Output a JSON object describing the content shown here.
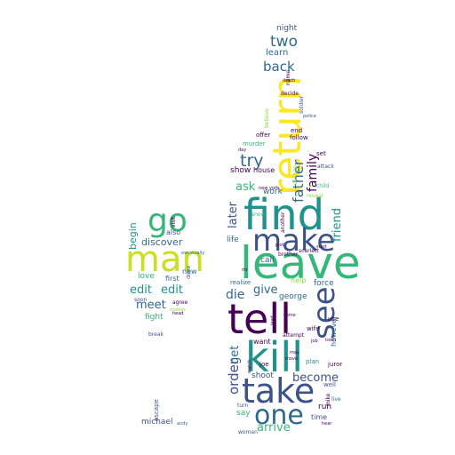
{
  "palette": {
    "deep_purple": "#440154",
    "indigo": "#3b528b",
    "teal_blue": "#31688e",
    "teal": "#21918c",
    "green": "#35b779",
    "lime": "#90d743",
    "yellow": "#fde725"
  },
  "shapes": [
    "wine-glass",
    "wine-bottle"
  ],
  "words": {
    "leave": "leave",
    "find": "find",
    "tell": "tell",
    "make": "make",
    "man": "man",
    "kill": "kill",
    "take": "take",
    "go": "go",
    "return": "return",
    "see": "see",
    "one": "one",
    "back": "back",
    "two": "two",
    "try": "try",
    "father": "father",
    "family": "family",
    "friend": "friend",
    "arrive": "arrive",
    "become": "become",
    "order": "order",
    "get": "get",
    "give": "give",
    "die": "die",
    "later": "later",
    "ask": "ask",
    "edit1": "edit",
    "edit2": "edit",
    "meet": "meet",
    "discover": "discover",
    "begin": "begin",
    "love": "love",
    "fight": "fight",
    "michael": "michael",
    "first": "first",
    "new": "new",
    "also": "also",
    "learn": "learn",
    "night": "night",
    "work": "work",
    "life": "life",
    "call": "call",
    "force": "force",
    "george": "george",
    "shoot": "shoot",
    "want": "want",
    "run": "run",
    "time": "time",
    "say": "say",
    "however": "however",
    "show": "show",
    "house": "house",
    "murder": "murder",
    "offer": "offer",
    "end": "end",
    "follow": "follow",
    "police": "police",
    "soldier": "soldier",
    "decide": "decide",
    "help": "help",
    "agree": "agree",
    "soon": "soon",
    "escape": "escape",
    "break": "break",
    "drive": "drive",
    "visit": "visit",
    "eventually": "eventually",
    "day": "day",
    "death": "death",
    "name": "name",
    "believe": "believe",
    "set": "set",
    "attack": "attack",
    "child": "child",
    "reveal": "reveal",
    "change": "change",
    "brother": "brother",
    "scarlett": "scarlett",
    "realize": "realize",
    "joe": "joe",
    "attempt": "attempt",
    "wife": "wife",
    "plan": "plan",
    "juror": "juror",
    "turn": "turn",
    "woman": "woman",
    "well": "well",
    "mike": "mike",
    "use": "use",
    "another": "another",
    "snow": "snow",
    "new_york": "new york",
    "come": "come",
    "move": "move",
    "head": "head",
    "andy": "andy",
    "mother": "mother",
    "live": "live",
    "watch": "watch",
    "hear": "hear",
    "plot": "plot",
    "job": "job",
    "mr": "mr",
    "may": "may",
    "town": "town",
    "start": "start",
    "lead": "lead"
  }
}
